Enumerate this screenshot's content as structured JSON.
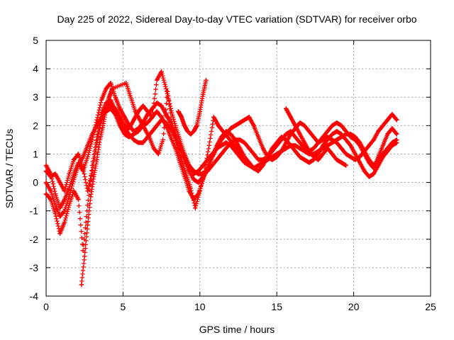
{
  "chart_data": {
    "type": "scatter",
    "title": "Day 225 of 2022, Sidereal Day-to-day VTEC variation (SDTVAR) for receiver orbo",
    "xlabel": "GPS time / hours",
    "ylabel": "SDTVAR / TECUs",
    "xlim": [
      0,
      25
    ],
    "ylim": [
      -4,
      5
    ],
    "xticks": [
      "0",
      "5",
      "10",
      "15",
      "20",
      "25"
    ],
    "yticks": [
      "-4",
      "-3",
      "-2",
      "-1",
      "0",
      "1",
      "2",
      "3",
      "4",
      "5"
    ],
    "grid": true,
    "marker": "+",
    "series_color": "#ff0000",
    "series": [
      {
        "name": "track-1",
        "x": [
          0.0,
          0.3,
          0.6,
          0.9,
          1.2,
          1.5,
          1.8,
          2.1,
          2.4,
          2.7,
          3.0,
          3.3,
          3.6,
          3.9,
          4.2,
          4.5,
          4.8,
          5.1,
          5.4,
          5.7,
          6.0,
          6.3,
          6.6,
          6.9,
          7.2,
          7.5,
          7.8,
          8.1,
          8.4,
          8.7,
          9.0,
          9.3,
          9.6,
          9.9,
          10.2,
          10.5,
          10.8,
          11.1,
          11.4,
          11.7,
          12.0,
          12.3,
          12.6,
          12.9,
          13.2,
          13.5,
          13.8,
          14.1,
          14.4,
          14.7,
          15.0,
          15.3,
          15.6,
          15.9,
          16.2,
          16.5,
          16.8,
          17.1,
          17.4,
          17.7,
          18.0,
          18.3,
          18.6,
          18.9,
          19.2,
          19.5,
          19.8,
          20.1,
          20.4,
          20.7,
          21.0,
          21.3,
          21.6,
          21.9,
          22.2,
          22.5,
          22.8
        ],
        "y": [
          0.6,
          0.3,
          -0.4,
          -0.9,
          -0.6,
          -0.2,
          0.3,
          0.7,
          0.4,
          0.9,
          1.5,
          2.2,
          2.9,
          3.3,
          3.5,
          3.0,
          2.6,
          2.3,
          2.0,
          1.8,
          1.9,
          2.1,
          2.4,
          2.6,
          2.8,
          2.7,
          2.4,
          2.1,
          1.7,
          1.3,
          0.9,
          0.5,
          0.3,
          0.4,
          0.6,
          0.8,
          1.0,
          1.2,
          1.3,
          1.4,
          1.3,
          1.1,
          0.9,
          0.7,
          0.6,
          0.5,
          0.6,
          0.7,
          0.8,
          0.9,
          1.0,
          1.1,
          1.2,
          1.3,
          1.3,
          1.2,
          1.1,
          1.0,
          1.0,
          1.1,
          1.2,
          1.3,
          1.4,
          1.5,
          1.6,
          1.7,
          1.7,
          1.6,
          1.4,
          1.1,
          0.8,
          0.6,
          0.8,
          1.0,
          1.2,
          1.4,
          1.5
        ]
      },
      {
        "name": "track-2",
        "x": [
          0.0,
          0.3,
          0.6,
          0.9,
          1.2,
          1.5,
          1.8,
          2.1,
          2.4,
          2.7,
          3.0,
          3.3,
          3.6,
          3.9,
          4.2,
          4.5,
          4.8,
          5.1,
          5.4,
          5.7,
          6.0,
          6.3,
          6.6,
          6.9,
          7.2,
          7.5,
          7.8,
          8.1,
          8.4,
          8.7,
          9.0,
          9.3,
          9.6,
          9.9,
          10.2,
          10.5,
          10.8,
          11.1,
          11.4,
          11.7,
          12.0,
          12.3,
          12.6,
          12.9,
          13.2,
          13.5,
          13.8,
          14.1,
          14.4,
          14.7,
          15.0,
          15.3,
          15.6,
          15.9,
          16.2,
          16.5,
          16.8,
          17.1,
          17.4,
          17.7,
          18.0,
          18.3,
          18.6,
          18.9,
          19.2,
          19.5,
          19.8,
          20.1,
          20.4,
          20.7,
          21.0,
          21.3,
          21.6,
          21.9,
          22.2,
          22.5,
          22.8
        ],
        "y": [
          0.0,
          -0.3,
          -0.8,
          -1.2,
          -1.0,
          -0.5,
          0.1,
          0.6,
          0.9,
          1.3,
          1.7,
          2.0,
          2.3,
          2.5,
          2.6,
          2.4,
          2.0,
          1.7,
          1.6,
          1.7,
          1.8,
          2.0,
          2.1,
          2.3,
          2.5,
          2.3,
          2.0,
          1.6,
          1.2,
          0.7,
          0.2,
          -0.3,
          -0.6,
          -0.4,
          0.1,
          0.5,
          0.9,
          1.3,
          1.6,
          1.8,
          1.7,
          1.5,
          1.2,
          0.9,
          0.7,
          0.5,
          0.4,
          0.6,
          0.9,
          1.2,
          1.4,
          1.6,
          1.5,
          1.3,
          1.1,
          0.9,
          0.8,
          0.7,
          0.8,
          1.0,
          1.3,
          1.5,
          1.7,
          1.8,
          1.7,
          1.5,
          1.3,
          1.0,
          0.7,
          0.4,
          0.2,
          0.3,
          0.6,
          0.9,
          1.1,
          1.3,
          1.4
        ]
      },
      {
        "name": "track-3",
        "x": [
          0.0,
          0.3,
          0.6,
          0.9,
          1.2,
          1.5,
          1.8,
          2.1,
          2.4,
          2.7,
          3.0,
          3.3,
          3.6,
          3.9,
          4.2,
          4.5,
          4.8,
          5.1,
          5.4,
          5.7,
          6.0,
          6.3,
          6.6,
          6.9,
          7.2,
          7.5,
          7.8,
          8.1,
          8.4,
          8.7,
          9.0,
          9.3,
          9.6,
          9.9,
          10.2,
          10.5,
          10.8,
          11.1,
          11.4,
          11.7,
          12.0,
          12.3,
          12.6,
          12.9,
          13.2,
          13.5,
          13.8,
          14.1,
          14.4,
          14.7,
          15.0,
          15.3,
          15.6,
          15.9,
          16.2,
          16.5,
          16.8,
          17.1,
          17.4,
          17.7,
          18.0,
          18.3,
          18.6,
          18.9,
          19.2,
          19.5,
          19.8,
          20.1,
          20.4,
          20.7,
          21.0,
          21.3,
          21.6,
          21.9,
          22.2,
          22.5,
          22.8
        ],
        "y": [
          -0.4,
          -0.6,
          -1.1,
          -1.8,
          -1.4,
          -0.8,
          -0.3,
          -0.6,
          -2.4,
          -0.8,
          0.6,
          1.6,
          2.4,
          2.8,
          2.9,
          2.5,
          2.2,
          1.9,
          1.7,
          1.5,
          1.4,
          1.4,
          1.6,
          1.8,
          2.0,
          2.2,
          2.1,
          1.9,
          1.6,
          1.2,
          0.8,
          0.4,
          0.1,
          0.0,
          0.2,
          0.5,
          0.9,
          1.2,
          1.5,
          1.7,
          1.9,
          2.0,
          2.1,
          2.2,
          2.3,
          2.0,
          1.6,
          1.2,
          0.9,
          0.8,
          0.9,
          1.1,
          1.4,
          1.7,
          1.9,
          2.1,
          2.0,
          1.8,
          1.6,
          1.4,
          1.6,
          1.8,
          2.0,
          2.1,
          2.0,
          1.8,
          1.6,
          1.5,
          1.3,
          1.0,
          0.7,
          0.5,
          0.9,
          1.3,
          1.7,
          1.9,
          1.7
        ]
      },
      {
        "name": "track-4",
        "x": [
          0.0,
          0.3,
          0.6,
          0.9,
          1.2,
          1.5,
          1.8,
          2.1,
          2.4,
          2.7,
          3.0,
          3.3,
          3.6,
          3.9,
          4.2,
          4.5,
          4.8,
          5.1,
          5.4,
          5.7,
          6.0,
          6.3,
          6.6,
          6.9,
          7.2,
          7.5,
          7.8,
          8.1,
          8.4,
          8.7,
          9.0,
          9.3,
          9.6,
          9.9,
          10.2,
          10.5,
          10.8,
          11.1,
          11.4,
          11.7,
          12.0,
          12.3,
          12.6,
          12.9,
          13.2,
          13.5,
          13.8,
          14.1,
          14.4,
          14.7,
          15.0,
          15.3,
          15.6,
          15.9,
          16.2,
          16.5,
          16.8,
          17.1,
          17.4,
          17.7,
          18.0,
          18.3,
          18.6,
          18.9,
          19.2,
          19.5,
          19.8,
          20.1,
          20.4,
          20.7,
          21.0,
          21.3,
          21.6,
          21.9,
          22.2,
          22.5,
          22.8
        ],
        "y": [
          0.4,
          0.2,
          0.3,
          0.0,
          -0.3,
          0.3,
          0.8,
          1.0,
          0.5,
          -0.3,
          0.4,
          1.4,
          2.2,
          2.6,
          2.8,
          2.6,
          2.3,
          2.0,
          1.9,
          2.2,
          2.5,
          2.7,
          2.5,
          2.3,
          3.6,
          3.9,
          3.3,
          2.6,
          2.0,
          1.5,
          1.0,
          0.6,
          0.4,
          0.3,
          0.3,
          0.4,
          0.6,
          0.8,
          1.0,
          1.2,
          1.4,
          1.5,
          1.5,
          1.4,
          1.2,
          1.0,
          0.8,
          0.8,
          0.9,
          1.1,
          1.3,
          1.5,
          1.7,
          1.8,
          1.6,
          1.4,
          1.2,
          1.1,
          1.2,
          1.4,
          1.5,
          1.6,
          1.5,
          1.4,
          1.2,
          1.0,
          0.9,
          0.8,
          0.9,
          1.1,
          1.3,
          1.5,
          1.8,
          2.0,
          2.2,
          2.4,
          2.2
        ]
      },
      {
        "name": "track-5",
        "x": [
          2.3,
          2.5,
          2.7,
          2.9,
          3.1,
          3.3,
          3.5,
          3.7,
          3.9,
          4.1,
          4.3,
          5.2,
          5.5,
          5.8,
          6.1,
          6.4,
          6.7,
          7.0,
          7.3,
          7.6,
          7.9,
          8.2,
          8.5,
          8.8,
          9.1,
          9.4,
          9.7,
          10.0,
          10.3,
          10.6,
          10.9,
          11.2,
          11.5,
          11.8,
          12.1,
          12.4,
          12.7,
          13.0,
          15.6,
          15.9,
          16.2,
          16.5,
          16.8,
          17.1,
          17.4,
          17.7,
          18.0,
          18.3,
          18.6,
          18.9,
          19.2,
          19.5
        ],
        "y": [
          -3.6,
          -2.6,
          -1.5,
          -0.5,
          0.2,
          0.8,
          1.5,
          2.0,
          2.6,
          3.0,
          3.3,
          3.5,
          3.0,
          2.5,
          2.2,
          1.9,
          1.6,
          1.2,
          1.0,
          1.5,
          3.2,
          2.0,
          1.3,
          0.8,
          0.3,
          -0.2,
          -0.9,
          -0.3,
          0.4,
          1.3,
          2.3,
          2.0,
          1.8,
          1.6,
          1.4,
          1.2,
          1.0,
          0.8,
          2.6,
          2.3,
          2.0,
          1.7,
          1.4,
          1.1,
          0.9,
          0.8,
          1.0,
          1.2,
          1.0,
          0.8,
          0.7,
          0.6
        ]
      },
      {
        "name": "track-6",
        "x": [
          8.6,
          8.8,
          9.0,
          9.2,
          9.4,
          9.6,
          9.8,
          10.0,
          10.2,
          10.4
        ],
        "y": [
          2.5,
          2.3,
          2.0,
          1.8,
          1.7,
          1.8,
          2.0,
          2.5,
          3.1,
          3.6
        ]
      }
    ]
  }
}
